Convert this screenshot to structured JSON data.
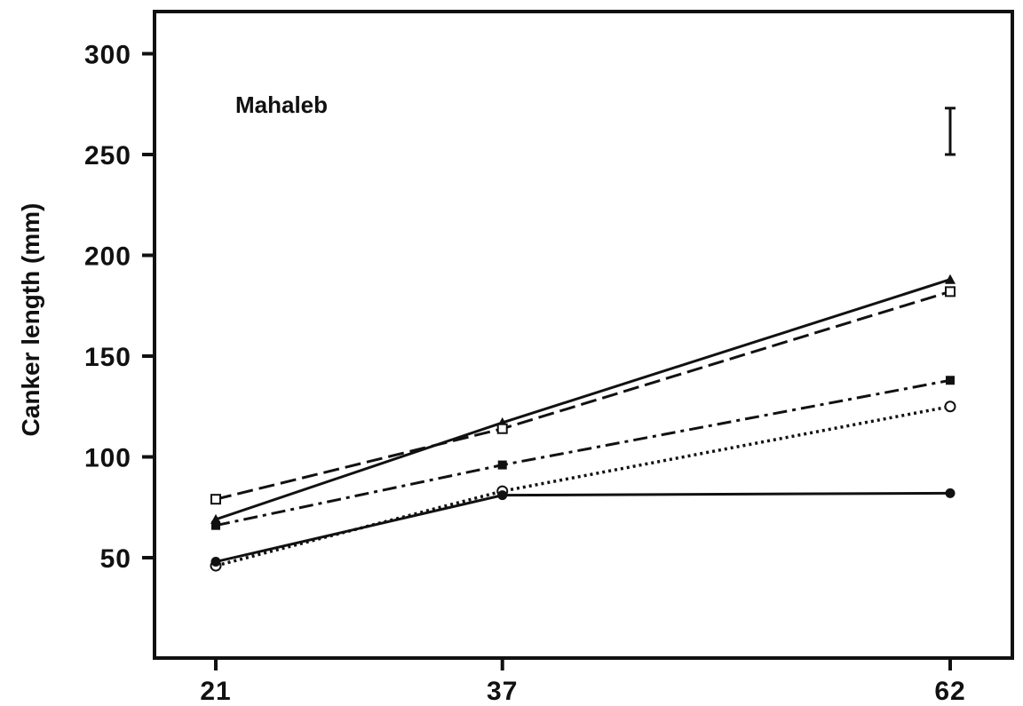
{
  "chart_data": {
    "type": "line",
    "title": "",
    "annotation": "Mahaleb",
    "xlabel": "",
    "ylabel": "Canker length (mm)",
    "x": [
      21,
      37,
      62
    ],
    "x_ticks": [
      "21",
      "37",
      "62"
    ],
    "y_ticks": [
      "50",
      "100",
      "150",
      "200",
      "250",
      "300"
    ],
    "xlim": [
      21,
      62
    ],
    "ylim": [
      15,
      315
    ],
    "grid": false,
    "legend": "none",
    "series": [
      {
        "marker": "filled-triangle",
        "line_style": "solid",
        "values": [
          69,
          117,
          188
        ]
      },
      {
        "marker": "open-square",
        "line_style": "dashed",
        "values": [
          79,
          114,
          182
        ]
      },
      {
        "marker": "filled-square",
        "line_style": "dash-dot",
        "values": [
          66,
          96,
          138
        ]
      },
      {
        "marker": "open-circle",
        "line_style": "dotted",
        "values": [
          46,
          83,
          125
        ]
      },
      {
        "marker": "filled-circle",
        "line_style": "solid",
        "values": [
          48,
          81,
          82
        ]
      }
    ],
    "error_bar": {
      "x": 62,
      "low": 250,
      "high": 273
    },
    "colors": {
      "line": "#111111",
      "background": "#ffffff"
    }
  }
}
